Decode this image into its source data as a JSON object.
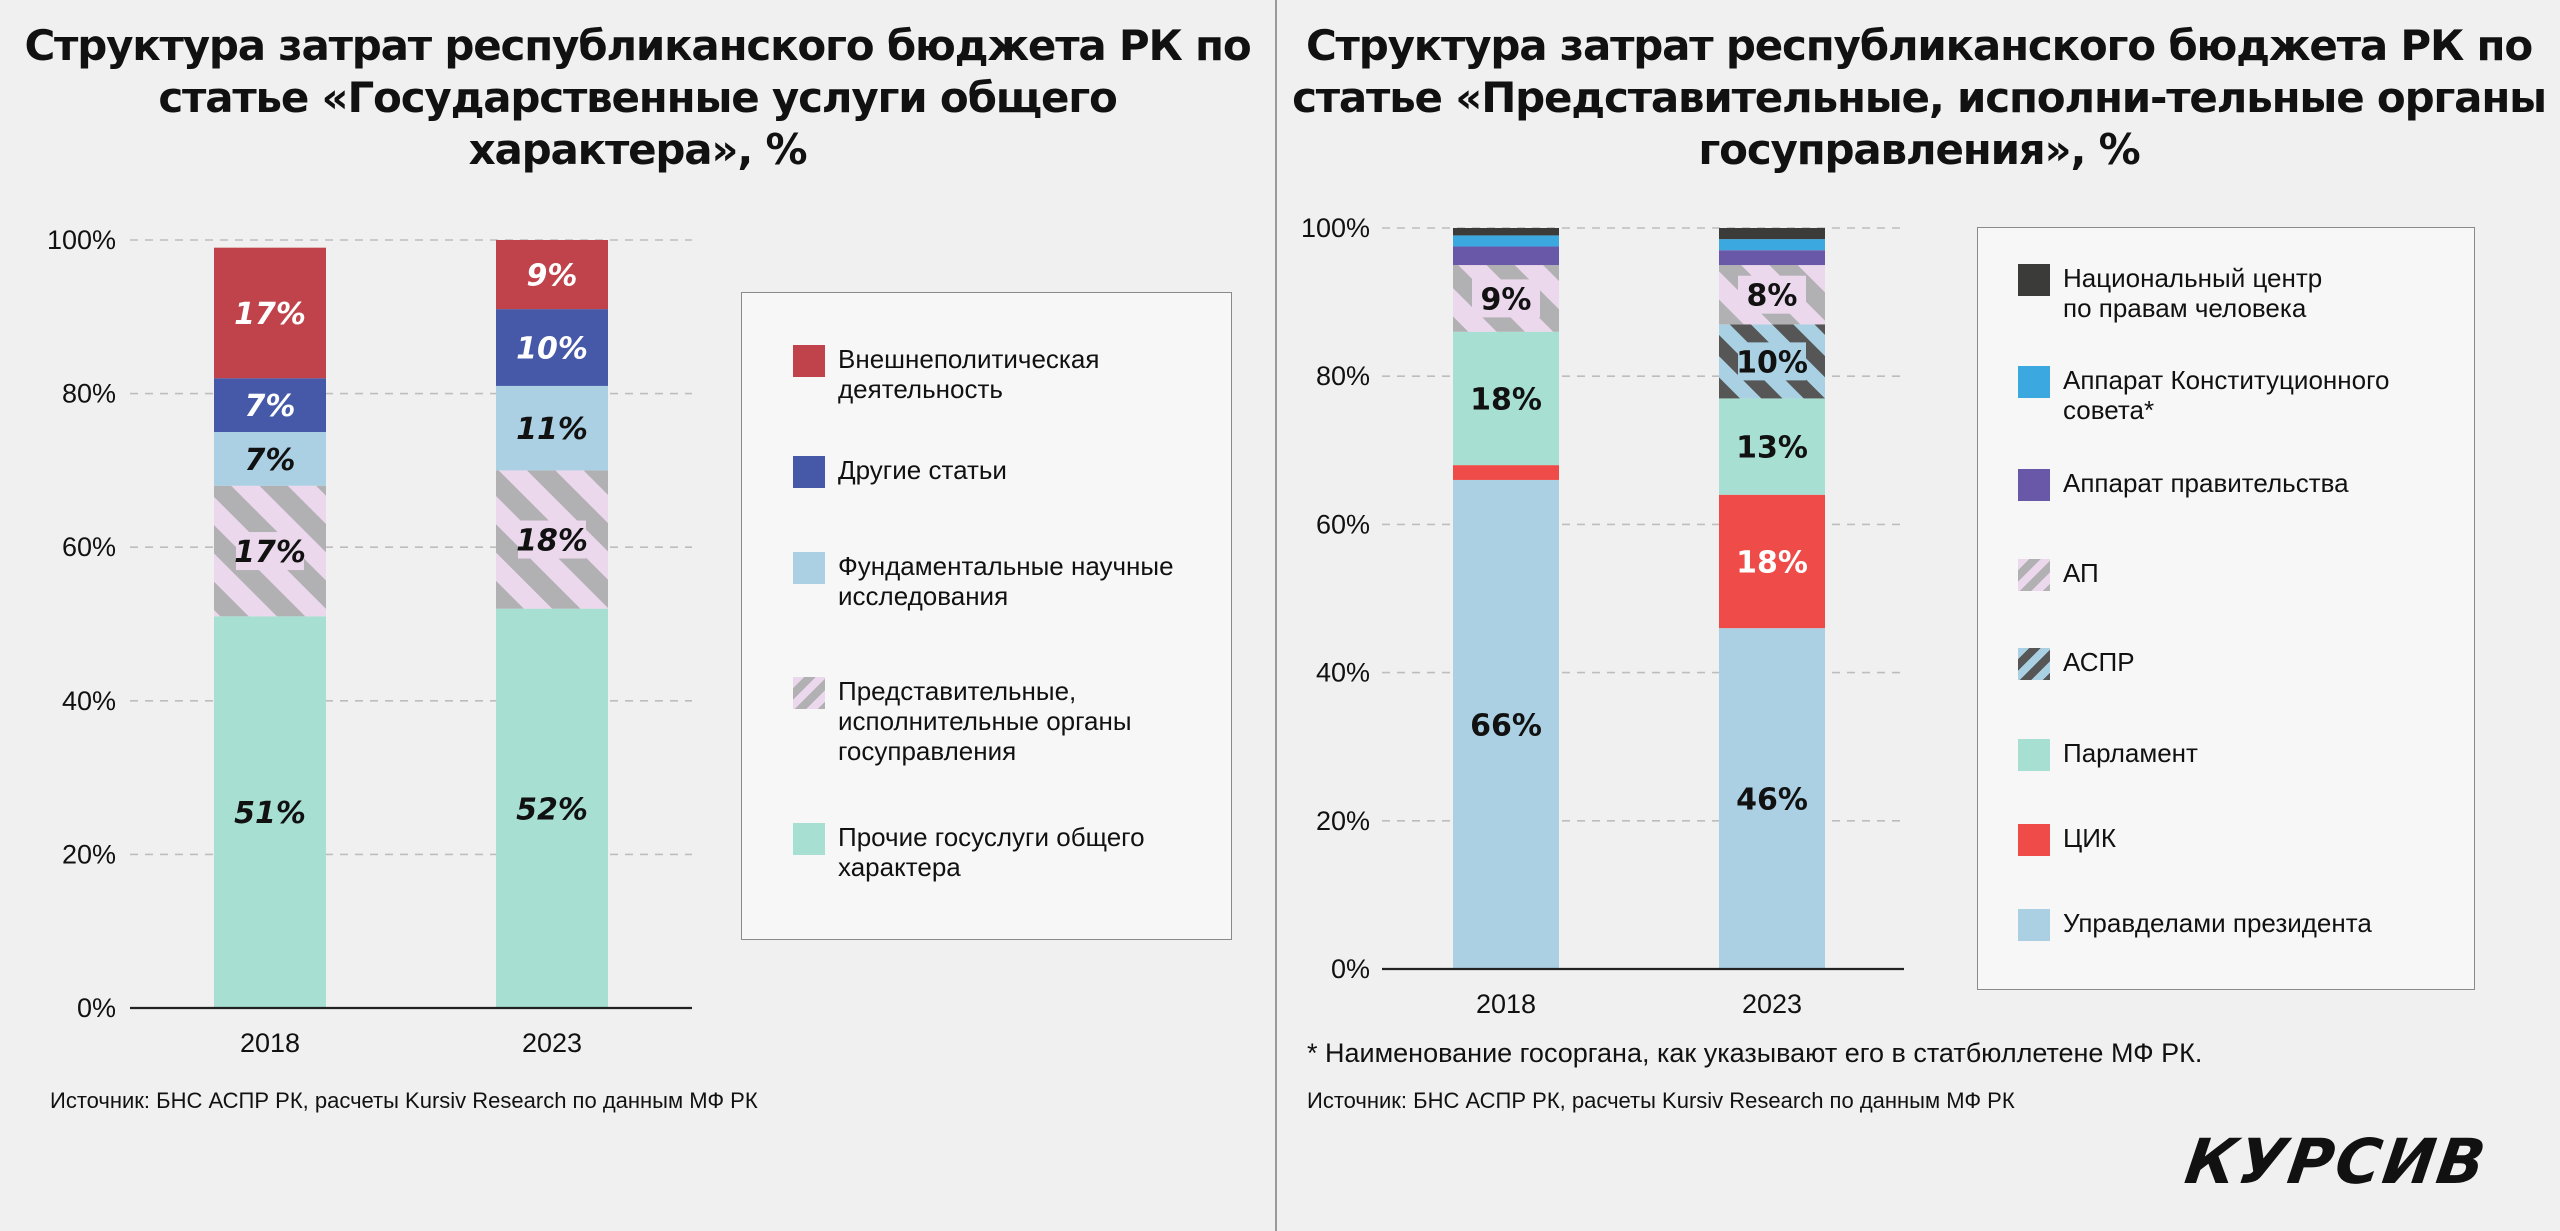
{
  "brand": {
    "logo": "КУРСИВ"
  },
  "colors": {
    "external": "#c0424a",
    "other": "#4659a8",
    "science": "#abd0e4",
    "representative_hatch_a": "#ebd8ec",
    "representative_hatch_b": "#b1b0b2",
    "other_services": "#a7dfd2",
    "nchr": "#3b3b39",
    "constitutional": "#3ba8e0",
    "government": "#6957a8",
    "cik": "#ef4b48",
    "aspr_hatch_a": "#a9d0e3",
    "aspr_hatch_b": "#565656",
    "parliament": "#a7dfd2",
    "upravdelami": "#abd0e4"
  },
  "left": {
    "title": "Структура затрат республиканского бюджета РК по статье «Государственные услуги общего характера», %",
    "source": "Источник: БНС АСПР РК, расчеты Kursiv Research по данным МФ РК",
    "legend": [
      {
        "label": "Внешнеполитическая\nдеятельность",
        "swatch": "external"
      },
      {
        "label": "Другие статьи",
        "swatch": "other"
      },
      {
        "label": "Фундаментальные научные\nисследования",
        "swatch": "science"
      },
      {
        "label": "Представительные,\nисполнительные органы\nгосуправления",
        "swatch": "hatch-ap"
      },
      {
        "label": "Прочие госуслуги общего\nхарактера",
        "swatch": "other_services"
      }
    ]
  },
  "right": {
    "title": "Структура затрат республиканского бюджета РК по статье «Представительные, исполни-тельные органы госуправления», %",
    "note": "* Наименование госоргана, как указывают его в статбюллетене МФ РК.",
    "source": "Источник: БНС АСПР РК, расчеты Kursiv Research по данным МФ РК",
    "legend": [
      {
        "label": "Национальный центр\nпо правам человека",
        "swatch": "nchr"
      },
      {
        "label": "Аппарат Конституционного\nсовета*",
        "swatch": "constitutional"
      },
      {
        "label": "Аппарат правительства",
        "swatch": "government"
      },
      {
        "label": "АП",
        "swatch": "hatch-ap"
      },
      {
        "label": "АСПР",
        "swatch": "hatch-aspr"
      },
      {
        "label": "Парламент",
        "swatch": "parliament"
      },
      {
        "label": "ЦИК",
        "swatch": "cik"
      },
      {
        "label": "Управделами президента",
        "swatch": "upravdelami"
      }
    ]
  },
  "chart_data": [
    {
      "type": "bar",
      "stacked": true,
      "title": "Структура затрат республиканского бюджета РК по статье «Государственные услуги общего характера», %",
      "categories": [
        "2018",
        "2023"
      ],
      "ylim": [
        0,
        100
      ],
      "yticks": [
        "0%",
        "20%",
        "40%",
        "60%",
        "80%",
        "100%"
      ],
      "grid": true,
      "legend_position": "right",
      "series": [
        {
          "name": "Прочие госуслуги общего характера",
          "values": [
            51,
            52
          ],
          "labels": [
            "51%",
            "52%"
          ],
          "color": "#a7dfd2"
        },
        {
          "name": "Представительные, исполнительные органы госуправления",
          "values": [
            17,
            18
          ],
          "labels": [
            "17%",
            "18%"
          ],
          "pattern": "hatch-ap"
        },
        {
          "name": "Фундаментальные научные исследования",
          "values": [
            7,
            11
          ],
          "labels": [
            "7%",
            "11%"
          ],
          "color": "#abd0e4"
        },
        {
          "name": "Другие статьи",
          "values": [
            7,
            10
          ],
          "labels": [
            "7%",
            "10%"
          ],
          "color": "#4659a8"
        },
        {
          "name": "Внешнеполитическая деятельность",
          "values": [
            17,
            9
          ],
          "labels": [
            "17%",
            "9%"
          ],
          "color": "#c0424a"
        }
      ]
    },
    {
      "type": "bar",
      "stacked": true,
      "title": "Структура затрат республиканского бюджета РК по статье «Представительные, исполни-тельные органы госуправления», %",
      "categories": [
        "2018",
        "2023"
      ],
      "ylim": [
        0,
        100
      ],
      "yticks": [
        "0%",
        "20%",
        "40%",
        "60%",
        "80%",
        "100%"
      ],
      "grid": true,
      "legend_position": "right",
      "series": [
        {
          "name": "Управделами президента",
          "values": [
            66,
            46
          ],
          "labels": [
            "66%",
            "46%"
          ],
          "color": "#abd0e4"
        },
        {
          "name": "ЦИК",
          "values": [
            2,
            18
          ],
          "labels": [
            "",
            "18%"
          ],
          "color": "#ef4b48"
        },
        {
          "name": "Парламент",
          "values": [
            18,
            13
          ],
          "labels": [
            "18%",
            "13%"
          ],
          "color": "#a7dfd2"
        },
        {
          "name": "АСПР",
          "values": [
            0,
            10
          ],
          "labels": [
            "",
            "10%"
          ],
          "pattern": "hatch-aspr"
        },
        {
          "name": "АП",
          "values": [
            9,
            8
          ],
          "labels": [
            "9%",
            "8%"
          ],
          "pattern": "hatch-ap"
        },
        {
          "name": "Аппарат правительства",
          "values": [
            2.5,
            2
          ],
          "labels": [
            "",
            ""
          ],
          "color": "#6957a8"
        },
        {
          "name": "Аппарат Конституционного совета*",
          "values": [
            1.5,
            1.5
          ],
          "labels": [
            "",
            ""
          ],
          "color": "#3ba8e0"
        },
        {
          "name": "Национальный центр по правам человека",
          "values": [
            1,
            1.5
          ],
          "labels": [
            "",
            ""
          ],
          "color": "#3b3b39"
        }
      ]
    }
  ]
}
